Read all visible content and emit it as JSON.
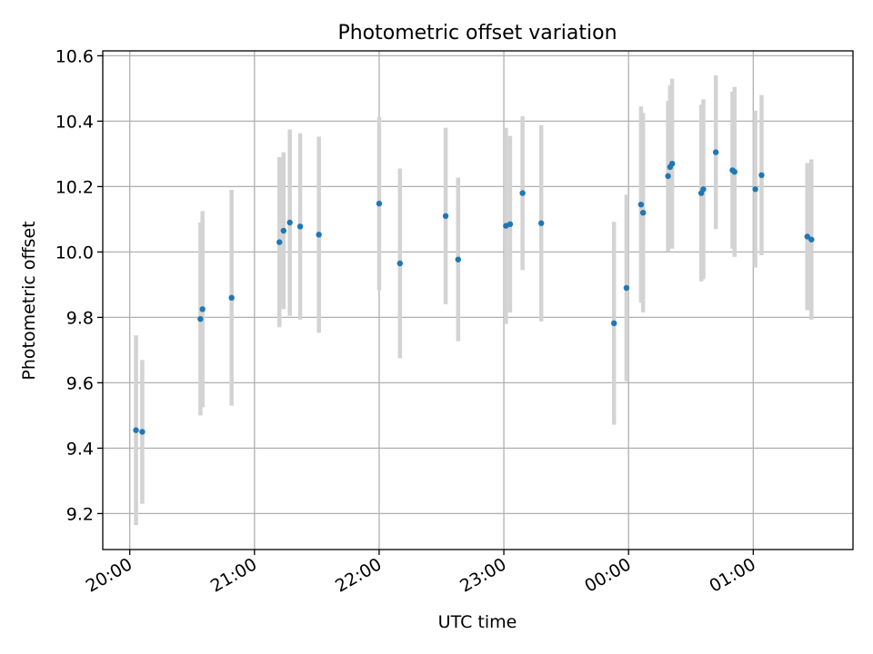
{
  "chart_data": {
    "type": "scatter",
    "title": "Photometric offset variation",
    "xlabel": "UTC time",
    "ylabel": "Photometric offset",
    "x_ticks": [
      "20:00",
      "21:00",
      "22:00",
      "23:00",
      "00:00",
      "01:00"
    ],
    "y_ticks": [
      "9.2",
      "9.4",
      "9.6",
      "9.8",
      "10.0",
      "10.2",
      "10.4",
      "10.6"
    ],
    "x_tick_times": [
      "20:00",
      "21:00",
      "22:00",
      "23:00",
      "24:00",
      "25:00"
    ],
    "xlim": [
      "19:47",
      "25:48"
    ],
    "ylim": [
      9.09,
      10.615
    ],
    "grid": true,
    "colors": {
      "point": "#1f77b4",
      "errorbar": "#d3d3d3",
      "grid": "#b0b0b0"
    },
    "points": [
      {
        "time": "20:03",
        "y": 9.455,
        "err": 0.29
      },
      {
        "time": "20:06",
        "y": 9.45,
        "err": 0.22
      },
      {
        "time": "20:34",
        "y": 9.795,
        "err": 0.295
      },
      {
        "time": "20:35",
        "y": 9.825,
        "err": 0.3
      },
      {
        "time": "20:49",
        "y": 9.86,
        "err": 0.33
      },
      {
        "time": "21:12",
        "y": 10.03,
        "err": 0.26
      },
      {
        "time": "21:14",
        "y": 10.065,
        "err": 0.24
      },
      {
        "time": "21:17",
        "y": 10.09,
        "err": 0.285
      },
      {
        "time": "21:22",
        "y": 10.078,
        "err": 0.285
      },
      {
        "time": "21:31",
        "y": 10.053,
        "err": 0.3
      },
      {
        "time": "22:00",
        "y": 10.148,
        "err": 0.265
      },
      {
        "time": "22:10",
        "y": 9.965,
        "err": 0.29
      },
      {
        "time": "22:32",
        "y": 10.11,
        "err": 0.27
      },
      {
        "time": "22:38",
        "y": 9.977,
        "err": 0.25
      },
      {
        "time": "23:01",
        "y": 10.08,
        "err": 0.3
      },
      {
        "time": "23:03",
        "y": 10.085,
        "err": 0.27
      },
      {
        "time": "23:09",
        "y": 10.18,
        "err": 0.235
      },
      {
        "time": "23:18",
        "y": 10.088,
        "err": 0.3
      },
      {
        "time": "23:53",
        "y": 9.782,
        "err": 0.31
      },
      {
        "time": "23:59",
        "y": 9.89,
        "err": 0.285
      },
      {
        "time": "24:06",
        "y": 10.145,
        "err": 0.3
      },
      {
        "time": "24:07",
        "y": 10.12,
        "err": 0.305
      },
      {
        "time": "24:19",
        "y": 10.232,
        "err": 0.23
      },
      {
        "time": "24:20",
        "y": 10.26,
        "err": 0.25
      },
      {
        "time": "24:21",
        "y": 10.27,
        "err": 0.26
      },
      {
        "time": "24:35",
        "y": 10.18,
        "err": 0.27
      },
      {
        "time": "24:36",
        "y": 10.192,
        "err": 0.275
      },
      {
        "time": "24:42",
        "y": 10.305,
        "err": 0.235
      },
      {
        "time": "24:50",
        "y": 10.25,
        "err": 0.24
      },
      {
        "time": "24:51",
        "y": 10.245,
        "err": 0.26
      },
      {
        "time": "25:01",
        "y": 10.192,
        "err": 0.24
      },
      {
        "time": "25:04",
        "y": 10.235,
        "err": 0.245
      },
      {
        "time": "25:26",
        "y": 10.047,
        "err": 0.225
      },
      {
        "time": "25:28",
        "y": 10.038,
        "err": 0.245
      }
    ]
  }
}
